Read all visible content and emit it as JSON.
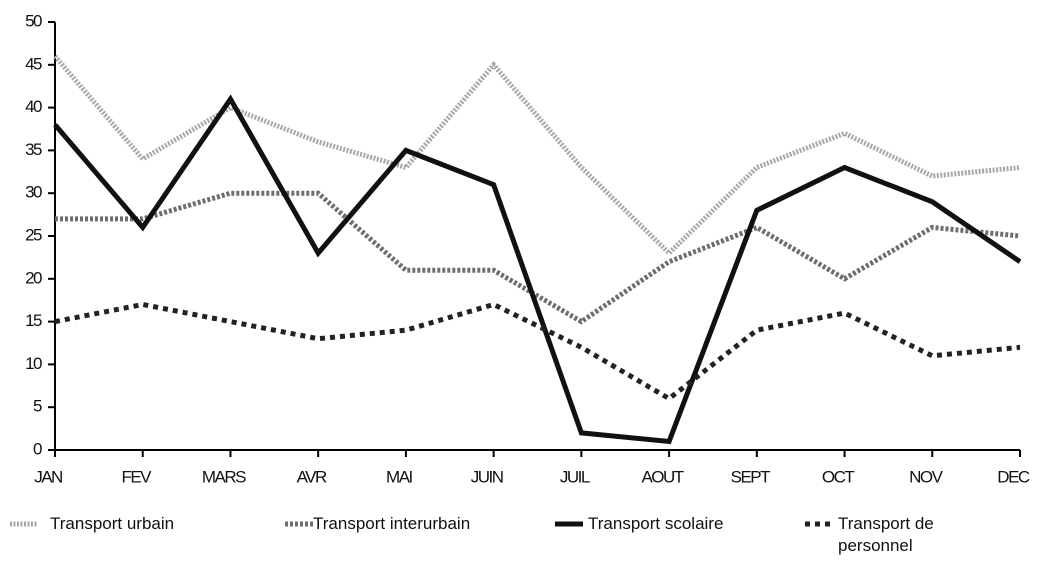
{
  "chart_data": {
    "type": "line",
    "categories": [
      "JAN",
      "FEV",
      "MARS",
      "AVR",
      "MAI",
      "JUIN",
      "JUIL",
      "AOUT",
      "SEPT",
      "OCT",
      "NOV",
      "DEC"
    ],
    "series": [
      {
        "name": "Transport urbain",
        "color": "#a8a8a8",
        "values": [
          46,
          34,
          40,
          36,
          33,
          45,
          33,
          23,
          33,
          37,
          32,
          33
        ]
      },
      {
        "name": "Transport interurbain",
        "color": "#6e6e6e",
        "values": [
          27,
          27,
          30,
          30,
          21,
          21,
          15,
          22,
          26,
          20,
          26,
          25
        ]
      },
      {
        "name": "Transport scolaire",
        "color": "#111111",
        "values": [
          38,
          26,
          41,
          23,
          35,
          31,
          2,
          1,
          28,
          33,
          29,
          22
        ]
      },
      {
        "name": "Transport de personnel",
        "color": "#222222",
        "values": [
          15,
          17,
          15,
          13,
          14,
          17,
          12,
          6,
          14,
          16,
          11,
          12
        ]
      }
    ],
    "ylim": [
      0,
      50
    ],
    "yticks": [
      0,
      5,
      10,
      15,
      20,
      25,
      30,
      35,
      40,
      45,
      50
    ],
    "grid": false
  }
}
